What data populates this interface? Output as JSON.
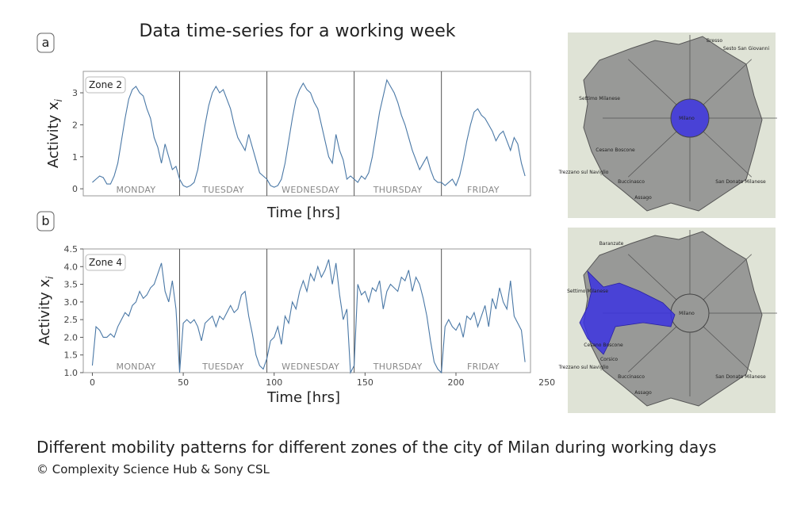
{
  "figure": {
    "title": "Data time-series for a working week",
    "caption": "Different mobility patterns for different zones of the city of Milan during working days",
    "credit": "© Complexity Science Hub & Sony CSL"
  },
  "chart_data": [
    {
      "type": "line",
      "panel_label": "a",
      "xlabel": "Time [hrs]",
      "ylabel": "Activity x",
      "ylabel_subscript": "i",
      "xlim": [
        -5,
        241
      ],
      "ylim": [
        -0.22,
        3.67
      ],
      "yticks": [
        0,
        1,
        2,
        3
      ],
      "day_boundaries": [
        48,
        96,
        144,
        192
      ],
      "day_labels": [
        "MONDAY",
        "TUESDAY",
        "WEDNESDAY",
        "THURSDAY",
        "FRIDAY"
      ],
      "x": [
        0,
        2,
        4,
        6,
        8,
        10,
        12,
        14,
        16,
        18,
        20,
        22,
        24,
        26,
        28,
        30,
        32,
        34,
        36,
        38,
        40,
        42,
        44,
        46,
        48,
        50,
        52,
        54,
        56,
        58,
        60,
        62,
        64,
        66,
        68,
        70,
        72,
        74,
        76,
        78,
        80,
        82,
        84,
        86,
        88,
        90,
        92,
        94,
        96,
        98,
        100,
        102,
        104,
        106,
        108,
        110,
        112,
        114,
        116,
        118,
        120,
        122,
        124,
        126,
        128,
        130,
        132,
        134,
        136,
        138,
        140,
        142,
        144,
        146,
        148,
        150,
        152,
        154,
        156,
        158,
        160,
        162,
        164,
        166,
        168,
        170,
        172,
        174,
        176,
        178,
        180,
        182,
        184,
        186,
        188,
        190,
        192,
        194,
        196,
        198,
        200,
        202,
        204,
        206,
        208,
        210,
        212,
        214,
        216,
        218,
        220,
        222,
        224,
        226,
        228,
        230,
        232,
        234,
        236,
        238
      ],
      "series": [
        {
          "name": "Zone 2",
          "color": "#4a78a6",
          "values": [
            0.2,
            0.3,
            0.4,
            0.35,
            0.15,
            0.15,
            0.4,
            0.8,
            1.5,
            2.2,
            2.8,
            3.1,
            3.2,
            3.0,
            2.9,
            2.5,
            2.2,
            1.6,
            1.3,
            0.8,
            1.4,
            1.0,
            0.6,
            0.7,
            0.3,
            0.1,
            0.05,
            0.1,
            0.2,
            0.6,
            1.3,
            2.0,
            2.6,
            3.0,
            3.2,
            3.0,
            3.1,
            2.8,
            2.5,
            2.0,
            1.6,
            1.4,
            1.2,
            1.7,
            1.3,
            0.9,
            0.5,
            0.4,
            0.3,
            0.1,
            0.05,
            0.1,
            0.3,
            0.8,
            1.5,
            2.2,
            2.8,
            3.1,
            3.3,
            3.1,
            3.0,
            2.7,
            2.5,
            2.0,
            1.5,
            1.0,
            0.8,
            1.7,
            1.2,
            0.9,
            0.3,
            0.4,
            0.3,
            0.2,
            0.4,
            0.3,
            0.5,
            1.0,
            1.7,
            2.4,
            2.9,
            3.4,
            3.2,
            3.0,
            2.7,
            2.3,
            2.0,
            1.6,
            1.2,
            0.9,
            0.6,
            0.8,
            1.0,
            0.6,
            0.3,
            0.2,
            0.2,
            0.1,
            0.2,
            0.3,
            0.1,
            0.4,
            0.9,
            1.5,
            2.0,
            2.4,
            2.5,
            2.3,
            2.2,
            2.0,
            1.8,
            1.5,
            1.7,
            1.8,
            1.5,
            1.2,
            1.6,
            1.4,
            0.8,
            0.4
          ]
        }
      ]
    },
    {
      "type": "line",
      "panel_label": "b",
      "xlabel": "Time [hrs]",
      "ylabel": "Activity x",
      "ylabel_subscript": "i",
      "xlim": [
        -5,
        241
      ],
      "ylim": [
        1.0,
        4.5
      ],
      "xticks": [
        0,
        50,
        100,
        150,
        200,
        250
      ],
      "yticks": [
        {
          "value": 1.0,
          "label": "1.0"
        },
        {
          "value": 1.5,
          "label": "1.5"
        },
        {
          "value": 2.0,
          "label": "2.0"
        },
        {
          "value": 2.5,
          "label": "2.5"
        },
        {
          "value": 3.0,
          "label": "3.0"
        },
        {
          "value": 3.5,
          "label": "3.5"
        },
        {
          "value": 4.0,
          "label": "4.0"
        },
        {
          "value": 4.5,
          "label": "4.5"
        }
      ],
      "day_boundaries": [
        48,
        96,
        144,
        192
      ],
      "day_labels": [
        "MONDAY",
        "TUESDAY",
        "WEDNESDAY",
        "THURSDAY",
        "FRIDAY"
      ],
      "x": [
        0,
        2,
        4,
        6,
        8,
        10,
        12,
        14,
        16,
        18,
        20,
        22,
        24,
        26,
        28,
        30,
        32,
        34,
        36,
        38,
        40,
        42,
        44,
        46,
        48,
        50,
        52,
        54,
        56,
        58,
        60,
        62,
        64,
        66,
        68,
        70,
        72,
        74,
        76,
        78,
        80,
        82,
        84,
        86,
        88,
        90,
        92,
        94,
        96,
        98,
        100,
        102,
        104,
        106,
        108,
        110,
        112,
        114,
        116,
        118,
        120,
        122,
        124,
        126,
        128,
        130,
        132,
        134,
        136,
        138,
        140,
        142,
        144,
        146,
        148,
        150,
        152,
        154,
        156,
        158,
        160,
        162,
        164,
        166,
        168,
        170,
        172,
        174,
        176,
        178,
        180,
        182,
        184,
        186,
        188,
        190,
        192,
        194,
        196,
        198,
        200,
        202,
        204,
        206,
        208,
        210,
        212,
        214,
        216,
        218,
        220,
        222,
        224,
        226,
        228,
        230,
        232,
        234,
        236,
        238
      ],
      "series": [
        {
          "name": "Zone 4",
          "color": "#4a78a6",
          "values": [
            1.2,
            2.3,
            2.2,
            2.0,
            2.0,
            2.1,
            2.0,
            2.3,
            2.5,
            2.7,
            2.6,
            2.9,
            3.0,
            3.3,
            3.1,
            3.2,
            3.4,
            3.5,
            3.8,
            4.1,
            3.3,
            3.0,
            3.6,
            2.8,
            1.0,
            2.4,
            2.5,
            2.4,
            2.5,
            2.3,
            1.9,
            2.4,
            2.5,
            2.6,
            2.3,
            2.6,
            2.5,
            2.7,
            2.9,
            2.7,
            2.8,
            3.2,
            3.3,
            2.6,
            2.1,
            1.5,
            1.2,
            1.1,
            1.4,
            1.9,
            2.0,
            2.3,
            1.8,
            2.6,
            2.4,
            3.0,
            2.8,
            3.3,
            3.6,
            3.3,
            3.8,
            3.6,
            4.0,
            3.7,
            3.9,
            4.2,
            3.5,
            4.1,
            3.2,
            2.5,
            2.8,
            1.0,
            1.2,
            3.5,
            3.2,
            3.3,
            3.0,
            3.4,
            3.3,
            3.6,
            2.8,
            3.3,
            3.5,
            3.4,
            3.3,
            3.7,
            3.6,
            3.9,
            3.3,
            3.7,
            3.5,
            3.1,
            2.6,
            1.9,
            1.3,
            1.1,
            1.0,
            2.3,
            2.5,
            2.3,
            2.2,
            2.4,
            2.0,
            2.6,
            2.5,
            2.7,
            2.3,
            2.6,
            2.9,
            2.3,
            3.1,
            2.8,
            3.4,
            3.0,
            2.8,
            3.6,
            2.6,
            2.4,
            2.2,
            1.3
          ]
        }
      ]
    }
  ],
  "maps": [
    {
      "labels": [
        "Bresso",
        "Sesto San Giovanni",
        "Settimo Milanese",
        "Cesano Boscone",
        "Trezzano sul Naviglio",
        "Buccinasco",
        "Assago",
        "San Donato Milanese",
        "Milano"
      ]
    },
    {
      "labels": [
        "Baranzate",
        "Settimo Milanese",
        "Cesano Boscone",
        "Corsico",
        "Trezzano sul Naviglio",
        "Buccinasco",
        "Assago",
        "San Donato Milanese",
        "Milano"
      ]
    }
  ]
}
